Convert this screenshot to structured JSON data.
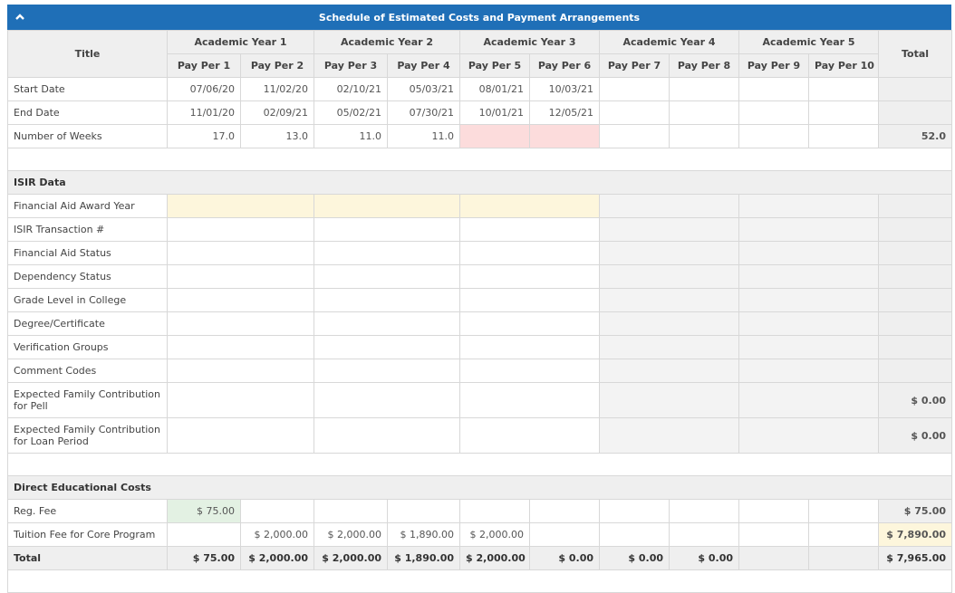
{
  "header": {
    "title": "Schedule of Estimated Costs and Payment Arrangements",
    "collapse_icon": "chevron-up-icon"
  },
  "columns": {
    "title": "Title",
    "total": "Total",
    "years": [
      "Academic Year 1",
      "Academic Year 2",
      "Academic Year 3",
      "Academic Year 4",
      "Academic Year 5"
    ],
    "periods": [
      "Pay Per 1",
      "Pay Per 2",
      "Pay Per 3",
      "Pay Per 4",
      "Pay Per 5",
      "Pay Per 6",
      "Pay Per 7",
      "Pay Per 8",
      "Pay Per 9",
      "Pay Per 10"
    ]
  },
  "schedule": {
    "start_date": {
      "label": "Start Date",
      "values": [
        "07/06/20",
        "11/02/20",
        "02/10/21",
        "05/03/21",
        "08/01/21",
        "10/03/21",
        "",
        "",
        "",
        ""
      ]
    },
    "end_date": {
      "label": "End Date",
      "values": [
        "11/01/20",
        "02/09/21",
        "05/02/21",
        "07/30/21",
        "10/01/21",
        "12/05/21",
        "",
        "",
        "",
        ""
      ]
    },
    "weeks": {
      "label": "Number of Weeks",
      "values": [
        "17.0",
        "13.0",
        "11.0",
        "11.0",
        "",
        "",
        "",
        "",
        "",
        ""
      ],
      "total": "52.0"
    }
  },
  "isir": {
    "section": "ISIR Data",
    "rows": [
      {
        "label": "Financial Aid Award Year",
        "total": ""
      },
      {
        "label": "ISIR Transaction #",
        "total": ""
      },
      {
        "label": "Financial Aid Status",
        "total": ""
      },
      {
        "label": "Dependency Status",
        "total": ""
      },
      {
        "label": "Grade Level in College",
        "total": ""
      },
      {
        "label": "Degree/Certificate",
        "total": ""
      },
      {
        "label": "Verification Groups",
        "total": ""
      },
      {
        "label": "Comment Codes",
        "total": ""
      },
      {
        "label": "Expected Family Contribution for Pell",
        "total": "$ 0.00"
      },
      {
        "label": "Expected Family Contribution for Loan Period",
        "total": "$ 0.00"
      }
    ]
  },
  "costs": {
    "section": "Direct Educational Costs",
    "rows": [
      {
        "label": "Reg. Fee",
        "values": [
          "$ 75.00",
          "",
          "",
          "",
          "",
          "",
          "",
          "",
          "",
          ""
        ],
        "total": "$ 75.00"
      },
      {
        "label": "Tuition Fee for Core Program",
        "values": [
          "",
          "$ 2,000.00",
          "$ 2,000.00",
          "$ 1,890.00",
          "$ 2,000.00",
          "",
          "",
          "",
          "",
          ""
        ],
        "total": "$ 7,890.00"
      }
    ],
    "total_row": {
      "label": "Total",
      "values": [
        "$ 75.00",
        "$ 2,000.00",
        "$ 2,000.00",
        "$ 1,890.00",
        "$ 2,000.00",
        "$ 0.00",
        "$ 0.00",
        "$ 0.00",
        "",
        ""
      ],
      "total": "$ 7,965.00"
    }
  },
  "colors": {
    "header_bg": "#1f6fb7",
    "award_year_bg": "#fdf6dc",
    "empty_weeks_bg": "#fcdcdc",
    "reg_fee_bg": "#e3f1e3",
    "grey_bg": "#efefef"
  }
}
